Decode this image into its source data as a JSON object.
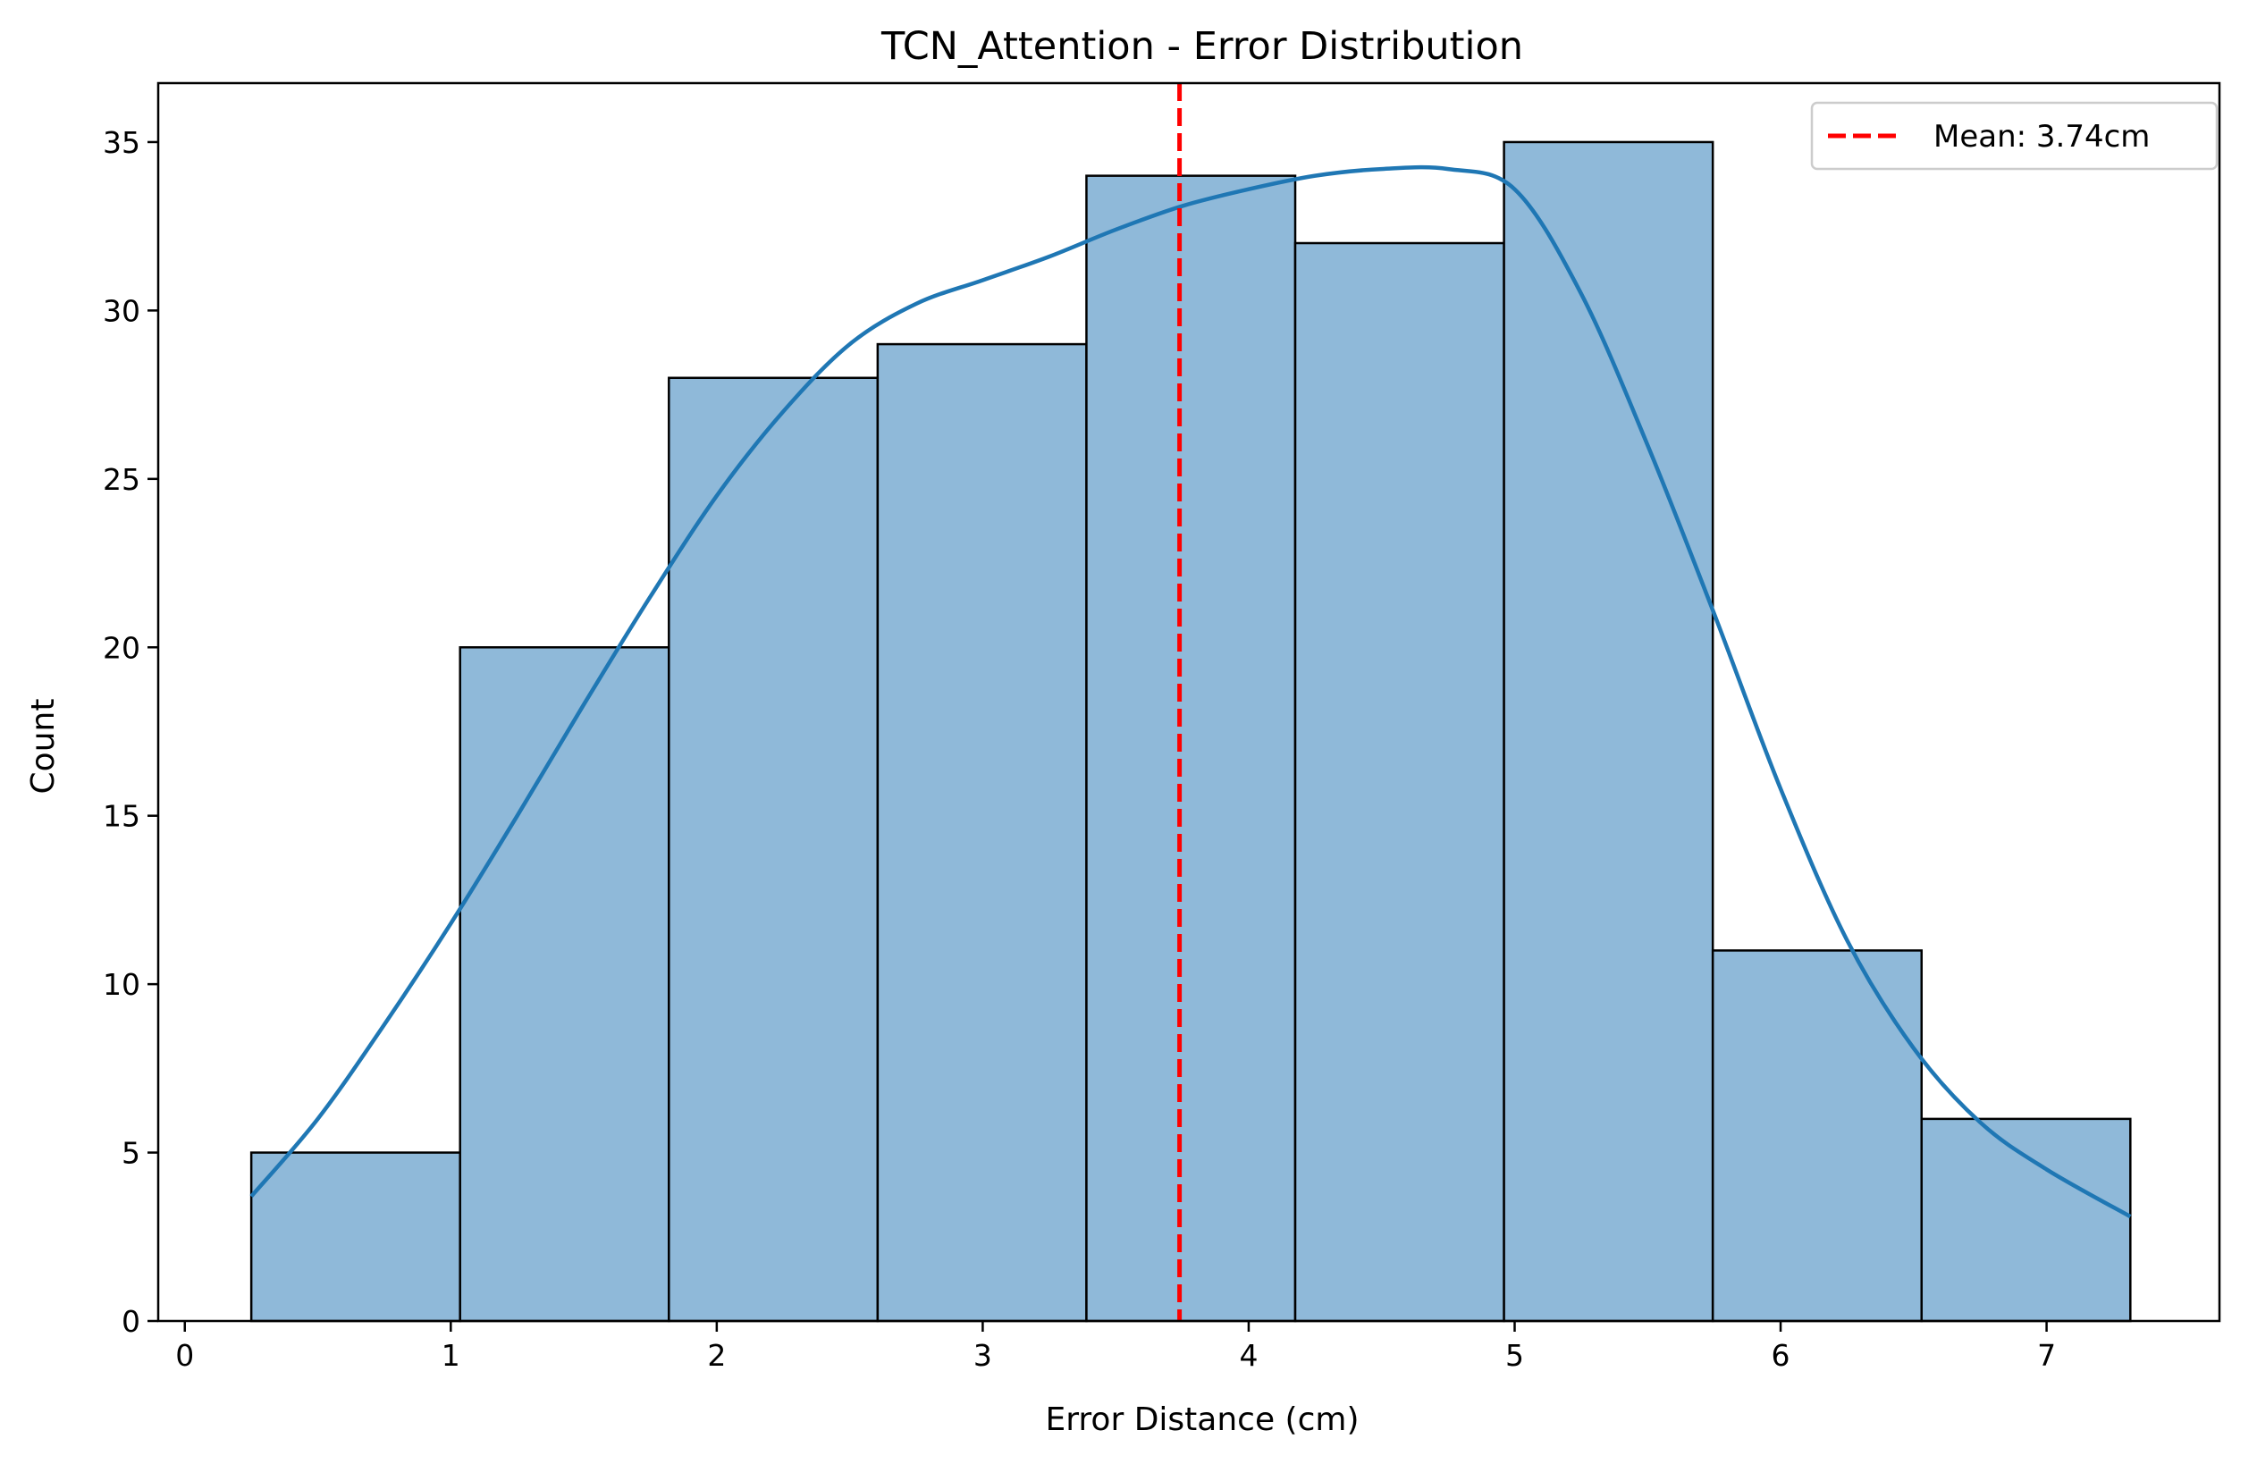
{
  "chart_data": {
    "type": "histogram",
    "title": "TCN_Attention - Error Distribution",
    "xlabel": "Error Distance (cm)",
    "ylabel": "Count",
    "xlim": [
      -0.1,
      7.65
    ],
    "ylim": [
      0,
      36.75
    ],
    "xticks": [
      0,
      1,
      2,
      3,
      4,
      5,
      6,
      7
    ],
    "yticks": [
      0,
      5,
      10,
      15,
      20,
      25,
      30,
      35
    ],
    "bin_edges": [
      0.25,
      1.035,
      1.82,
      2.605,
      3.39,
      4.175,
      4.96,
      5.745,
      6.53,
      7.315
    ],
    "counts": [
      5,
      20,
      28,
      29,
      34,
      32,
      35,
      11,
      6
    ],
    "bar_color": "#8fb9d9",
    "bar_edge_color": "#000000",
    "kde": {
      "color": "#1f77b4",
      "x": [
        0.25,
        0.5,
        0.75,
        1.0,
        1.25,
        1.5,
        1.75,
        2.0,
        2.25,
        2.5,
        2.75,
        3.0,
        3.25,
        3.5,
        3.75,
        4.0,
        4.25,
        4.5,
        4.75,
        5.0,
        5.25,
        5.5,
        5.75,
        6.0,
        6.25,
        6.5,
        6.75,
        7.0,
        7.315
      ],
      "y": [
        3.7,
        6.0,
        8.8,
        11.8,
        15.0,
        18.3,
        21.5,
        24.5,
        27.0,
        29.0,
        30.2,
        30.9,
        31.6,
        32.4,
        33.1,
        33.6,
        34.0,
        34.2,
        34.2,
        33.6,
        30.5,
        26.0,
        21.0,
        15.8,
        11.3,
        8.1,
        5.9,
        4.5,
        3.1
      ]
    },
    "mean_line": {
      "value": 3.74,
      "color": "#ff0000",
      "label": "Mean: 3.74cm"
    },
    "legend_position": "top-right",
    "grid": false
  }
}
